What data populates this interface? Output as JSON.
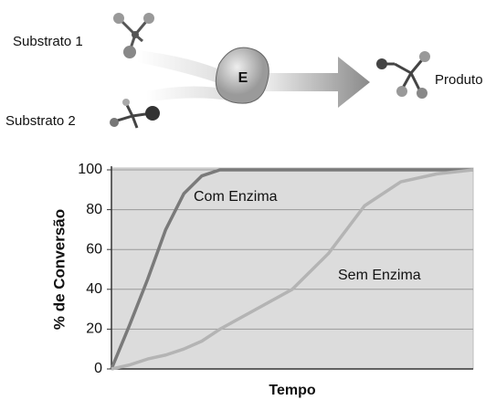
{
  "diagram": {
    "substrate_1": "Substrato 1",
    "substrate_2": "Substrato 2",
    "enzyme": "E",
    "product": "Produto"
  },
  "chart_data": {
    "type": "line",
    "x_label": "Tempo",
    "y_label": "% de Conversão",
    "x": [
      0,
      0.5,
      1,
      1.5,
      2,
      2.5,
      3,
      4,
      5,
      6,
      7,
      8,
      9,
      10
    ],
    "xlim": [
      0,
      10
    ],
    "ylim": [
      0,
      100
    ],
    "yticks": [
      0,
      20,
      40,
      60,
      80,
      100
    ],
    "grid": true,
    "series": [
      {
        "name": "Com Enzima",
        "color": "#7a7a7a",
        "values": [
          0,
          22,
          45,
          70,
          88,
          97,
          100,
          100,
          100,
          100,
          100,
          100,
          100,
          100
        ]
      },
      {
        "name": "Sem Enzima",
        "color": "#b4b4b4",
        "values": [
          0,
          2,
          5,
          7,
          10,
          14,
          20,
          30,
          40,
          58,
          82,
          94,
          98,
          100
        ]
      }
    ]
  }
}
